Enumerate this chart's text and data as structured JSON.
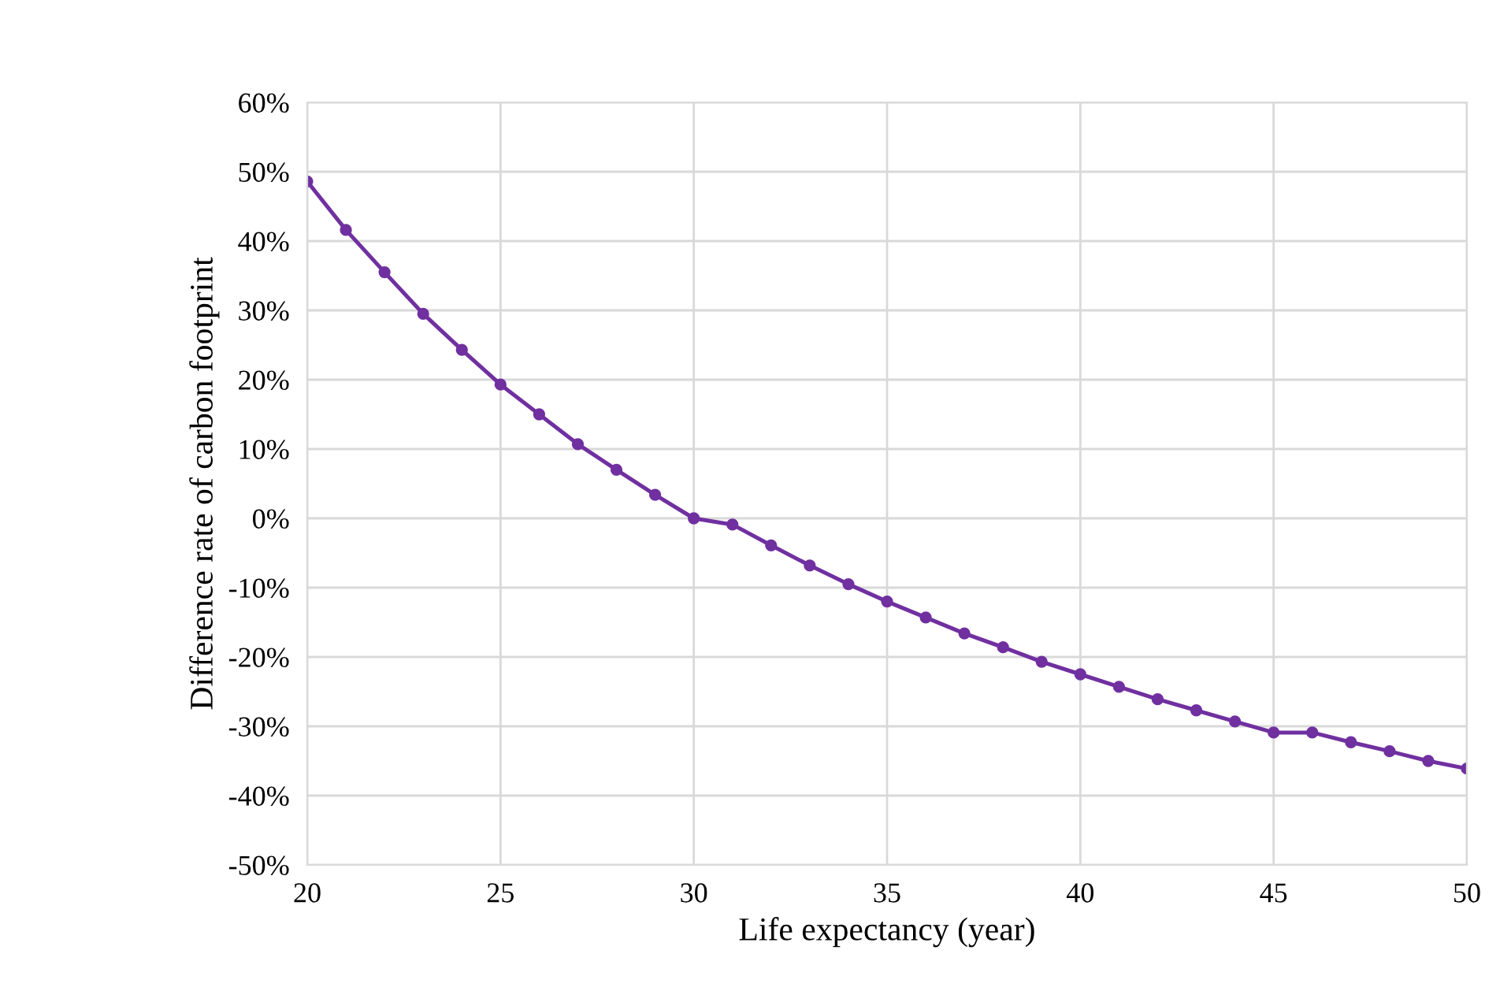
{
  "chart_data": {
    "type": "line",
    "xlabel": "Life expectancy (year)",
    "ylabel": "Difference rate of carbon footprint",
    "x": [
      20,
      21,
      22,
      23,
      24,
      25,
      26,
      27,
      28,
      29,
      30,
      31,
      32,
      33,
      34,
      35,
      36,
      37,
      38,
      39,
      40,
      41,
      42,
      43,
      44,
      45,
      46,
      47,
      48,
      49,
      50
    ],
    "series": [
      {
        "color": "#7030a0",
        "values": [
          48.6,
          41.6,
          35.5,
          29.5,
          24.3,
          19.3,
          15,
          10.7,
          7.0,
          3.4,
          0,
          -0.9,
          -3.9,
          -6.8,
          -9.5,
          -12,
          -14.3,
          -16.6,
          -18.6,
          -20.7,
          -22.5,
          -24.3,
          -26.1,
          -27.7,
          -29.3,
          -30.9,
          -30.9,
          -32.3,
          -33.6,
          -35,
          -36.1
        ]
      }
    ],
    "xlim": [
      20,
      50
    ],
    "xticks": [
      20,
      25,
      30,
      35,
      40,
      45,
      50
    ],
    "ylim": [
      -50,
      60
    ],
    "yticks": [
      {
        "value": -50,
        "label": "-50%"
      },
      {
        "value": -40,
        "label": "-40%"
      },
      {
        "value": -30,
        "label": "-30%"
      },
      {
        "value": -20,
        "label": "-20%"
      },
      {
        "value": -10,
        "label": "-10%"
      },
      {
        "value": 0,
        "label": "0%"
      },
      {
        "value": 10,
        "label": "10%"
      },
      {
        "value": 20,
        "label": "20%"
      },
      {
        "value": 30,
        "label": "30%"
      },
      {
        "value": 40,
        "label": "40%"
      },
      {
        "value": 50,
        "label": "50%"
      },
      {
        "value": 60,
        "label": "60%"
      }
    ],
    "grid": true,
    "marker": "circle",
    "line_style": "solid"
  }
}
